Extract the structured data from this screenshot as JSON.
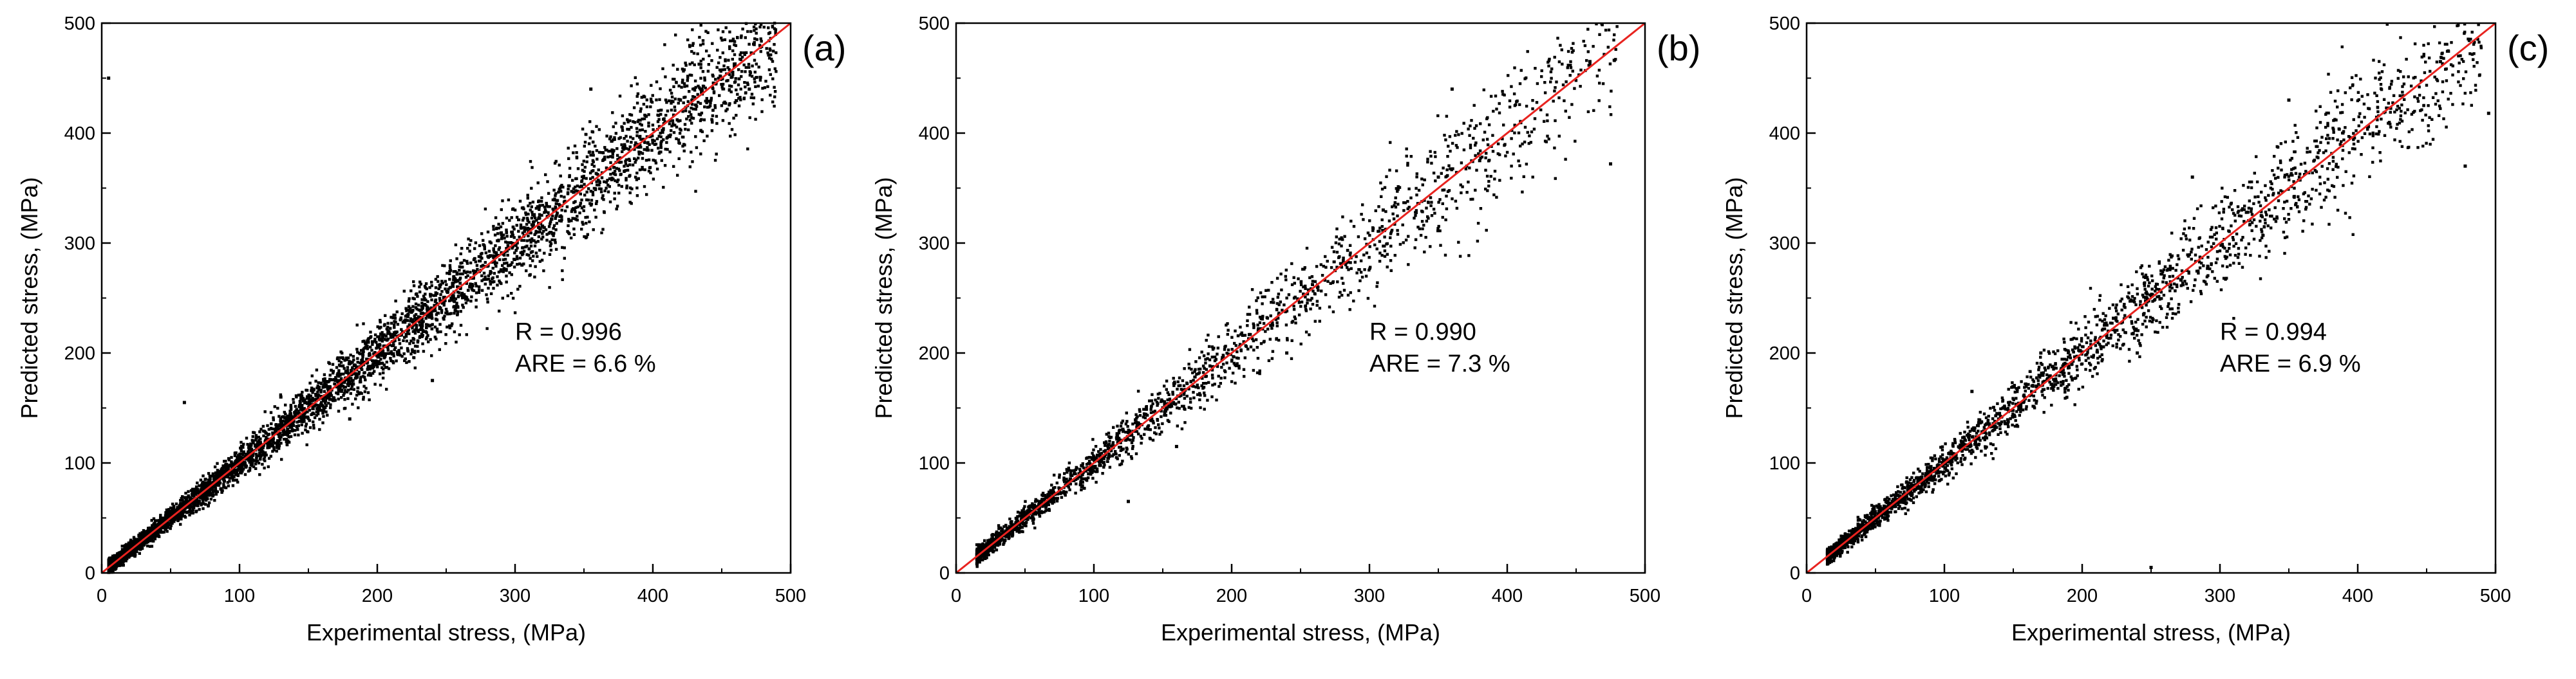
{
  "colors": {
    "points": "#000000",
    "fit_line": "#e8231f",
    "axes": "#000000",
    "background": "#ffffff"
  },
  "chart_data": [
    {
      "type": "scatter",
      "panel_label": "(a)",
      "xlabel": "Experimental stress, (MPa)",
      "ylabel": "Predicted stress, (MPa)",
      "xlim": [
        0,
        500
      ],
      "ylim": [
        0,
        500
      ],
      "xticks": [
        "0",
        "100",
        "200",
        "300",
        "400",
        "500"
      ],
      "yticks": [
        "0",
        "100",
        "200",
        "300",
        "400",
        "500"
      ],
      "fit_line": {
        "from": [
          0,
          0
        ],
        "to": [
          500,
          500
        ]
      },
      "annotations": {
        "r": "R = 0.996",
        "are": "ARE = 6.6 %"
      },
      "scatter": {
        "n": 5000,
        "x_min": 5,
        "x_max": 490,
        "spread_ratio": 0.065,
        "seed": 11,
        "outliers": [
          [
            5,
            450
          ],
          [
            10,
            10
          ],
          [
            470,
            440
          ],
          [
            355,
            440
          ],
          [
            60,
            155
          ],
          [
            240,
            175
          ],
          [
            420,
            430
          ],
          [
            305,
            280
          ],
          [
            180,
            140
          ],
          [
            130,
            160
          ]
        ]
      }
    },
    {
      "type": "scatter",
      "panel_label": "(b)",
      "xlabel": "Experimental stress, (MPa)",
      "ylabel": "Predicted stress, (MPa)",
      "xlim": [
        0,
        500
      ],
      "ylim": [
        0,
        500
      ],
      "xticks": [
        "0",
        "100",
        "200",
        "300",
        "400",
        "500"
      ],
      "yticks": [
        "0",
        "100",
        "200",
        "300",
        "400",
        "500"
      ],
      "fit_line": {
        "from": [
          0,
          0
        ],
        "to": [
          500,
          500
        ]
      },
      "annotations": {
        "r": "R = 0.990",
        "are": "ARE = 7.3 %"
      },
      "scatter": {
        "n": 2000,
        "x_min": 15,
        "x_max": 480,
        "spread_ratio": 0.075,
        "seed": 23,
        "outliers": [
          [
            475,
            372
          ],
          [
            360,
            440
          ],
          [
            460,
            465
          ],
          [
            380,
            375
          ],
          [
            350,
            360
          ],
          [
            275,
            275
          ],
          [
            240,
            200
          ],
          [
            310,
            330
          ],
          [
            160,
            115
          ],
          [
            125,
            65
          ]
        ]
      }
    },
    {
      "type": "scatter",
      "panel_label": "(c)",
      "xlabel": "Experimental stress, (MPa)",
      "ylabel": "Predicted stress, (MPa)",
      "xlim": [
        0,
        500
      ],
      "ylim": [
        0,
        500
      ],
      "xticks": [
        "0",
        "100",
        "200",
        "300",
        "400",
        "500"
      ],
      "yticks": [
        "0",
        "100",
        "200",
        "300",
        "400",
        "500"
      ],
      "fit_line": {
        "from": [
          0,
          0
        ],
        "to": [
          500,
          500
        ]
      },
      "annotations": {
        "r": "R = 0.994",
        "are": "ARE = 6.9 %"
      },
      "scatter": {
        "n": 2500,
        "x_min": 15,
        "x_max": 490,
        "spread_ratio": 0.07,
        "seed": 37,
        "outliers": [
          [
            495,
            418
          ],
          [
            478,
            370
          ],
          [
            350,
            430
          ],
          [
            460,
            465
          ],
          [
            250,
            5
          ],
          [
            280,
            360
          ],
          [
            120,
            165
          ],
          [
            240,
            200
          ],
          [
            170,
            200
          ],
          [
            330,
            325
          ]
        ]
      }
    }
  ]
}
